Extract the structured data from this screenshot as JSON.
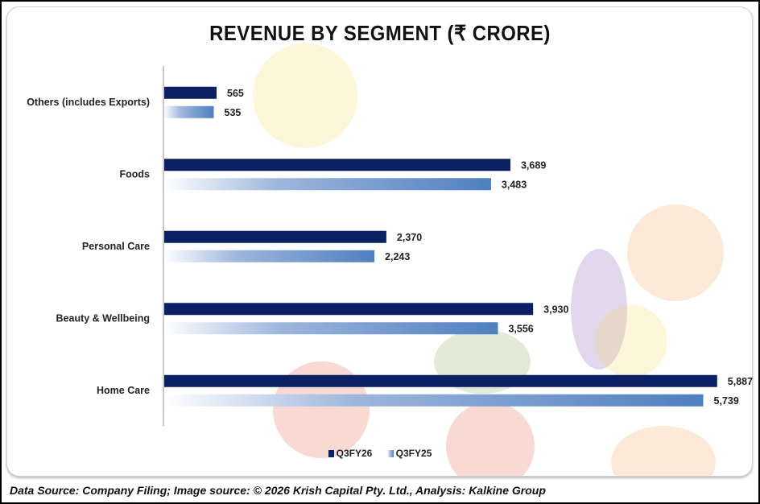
{
  "chart_data": {
    "type": "bar",
    "orientation": "horizontal",
    "title": "REVENUE BY SEGMENT (₹ CRORE)",
    "categories": [
      "Others (includes Exports)",
      "Foods",
      "Personal Care",
      "Beauty & Wellbeing",
      "Home Care"
    ],
    "series": [
      {
        "name": "Q3FY26",
        "values": [
          565,
          3689,
          2370,
          3930,
          5887
        ],
        "labels": [
          "565",
          "3,689",
          "2,370",
          "3,930",
          "5,887"
        ],
        "color": "#0b2163"
      },
      {
        "name": "Q3FY25",
        "values": [
          535,
          3483,
          2243,
          3556,
          5739
        ],
        "labels": [
          "535",
          "3,483",
          "2,243",
          "3,556",
          "5,739"
        ],
        "color": "#4f7fc0"
      }
    ],
    "xlim": [
      0,
      6000
    ],
    "grid": false,
    "legend": "bottom"
  },
  "footer": "Data Source: Company Filing; Image source: © 2026 Krish Capital Pty. Ltd., Analysis: Kalkine Group"
}
